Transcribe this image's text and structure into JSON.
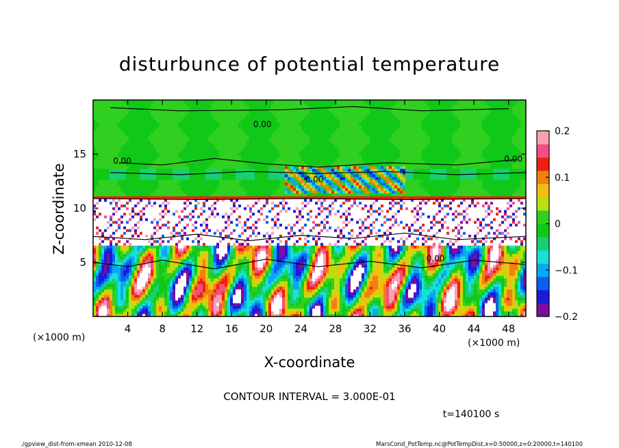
{
  "chart_data": {
    "type": "heatmap",
    "title": "disturbunce of potential temperature",
    "xlabel": "X-coordinate",
    "ylabel": "Z-coordinate",
    "x_unit_left": "(×1000 m)",
    "x_unit_right": "(×1000 m)",
    "x_ticks": [
      4,
      8,
      12,
      16,
      20,
      24,
      28,
      32,
      36,
      40,
      44,
      48
    ],
    "y_ticks": [
      5,
      10,
      15
    ],
    "xlim": [
      0,
      50
    ],
    "ylim": [
      0,
      20
    ],
    "colorbar": {
      "min": -0.2,
      "max": 0.2,
      "tick_labels": [
        "0.2",
        "0.1",
        "0",
        "−0.1",
        "−0.2"
      ],
      "tick_values": [
        0.2,
        0.1,
        0,
        -0.1,
        -0.2
      ],
      "colors": [
        "#7a0fa0",
        "#1a1ad8",
        "#0a60f0",
        "#0aa8f0",
        "#18e0d8",
        "#18d070",
        "#10c818",
        "#30d020",
        "#b8e010",
        "#f0c010",
        "#f08010",
        "#f02010",
        "#f05080",
        "#f8a0b0"
      ]
    },
    "contour_labels": [
      "0.00",
      "0.00",
      "0.00",
      "0.00",
      "0.00"
    ],
    "contour_interval": "CONTOUR INTERVAL = 3.000E-01",
    "time_label": "t=140100 s",
    "footer_left": "./gpview_dist-from-xmean   2010-12-08",
    "footer_right": "MarsCond_PotTemp.nc@PotTempDist,x=0:50000,z=0:20000,t=140100"
  }
}
